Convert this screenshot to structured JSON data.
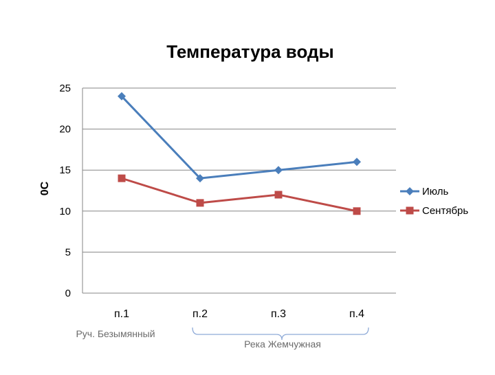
{
  "chart_data": {
    "type": "line",
    "title": "Температура воды",
    "xlabel": "",
    "ylabel": "0С",
    "categories": [
      "п.1",
      "п.2",
      "п.3",
      "п.4"
    ],
    "ylim": [
      0,
      25
    ],
    "yticks": [
      0,
      5,
      10,
      15,
      20,
      25
    ],
    "ytick_labels": [
      "0",
      "5",
      "10",
      "15",
      "20",
      "25"
    ],
    "grid": "horizontal",
    "legend_position": "right",
    "series": [
      {
        "name": "Июль",
        "values": [
          24,
          14,
          15,
          16
        ],
        "color": "#4a7ebb",
        "marker": "diamond"
      },
      {
        "name": "Сентябрь",
        "values": [
          14,
          11,
          12,
          10
        ],
        "color": "#be4b48",
        "marker": "square"
      }
    ],
    "annotations": {
      "stream_label": "Руч. Безымянный",
      "river_label": "Река Жемчужная"
    }
  }
}
